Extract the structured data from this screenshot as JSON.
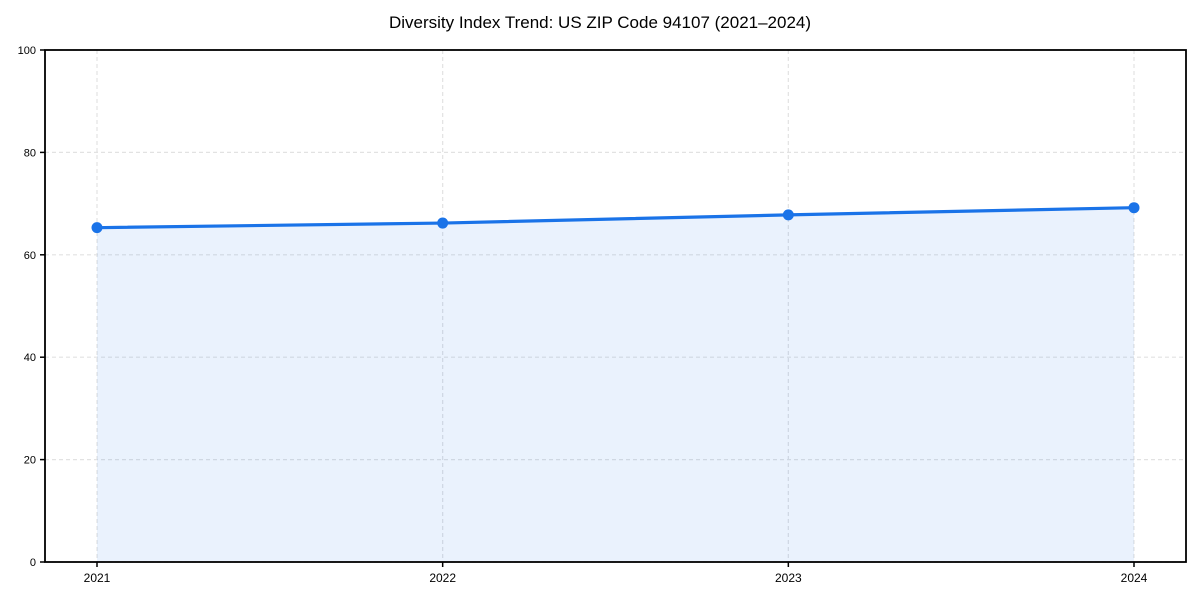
{
  "chart_data": {
    "type": "line",
    "title": "Diversity Index Trend: US ZIP Code 94107 (2021–2024)",
    "categories": [
      "2021",
      "2022",
      "2023",
      "2024"
    ],
    "series": [
      {
        "name": "Diversity Index",
        "values": [
          65.3,
          66.2,
          67.8,
          69.2
        ]
      }
    ],
    "xlabel": "",
    "ylabel": "",
    "ylim": [
      0,
      100
    ],
    "yticks": [
      0,
      20,
      40,
      60,
      80,
      100
    ],
    "grid": true,
    "grid_style": "dashed",
    "legend_position": "none",
    "area_fill": true,
    "marker": "circle",
    "colors": {
      "line": "#1a73e8",
      "marker": "#1a73e8",
      "fill": "#1a73e8",
      "grid": "#e2e2e2",
      "axis": "#000000",
      "text": "#000000",
      "background": "#ffffff"
    },
    "fill_opacity": 0.09
  }
}
